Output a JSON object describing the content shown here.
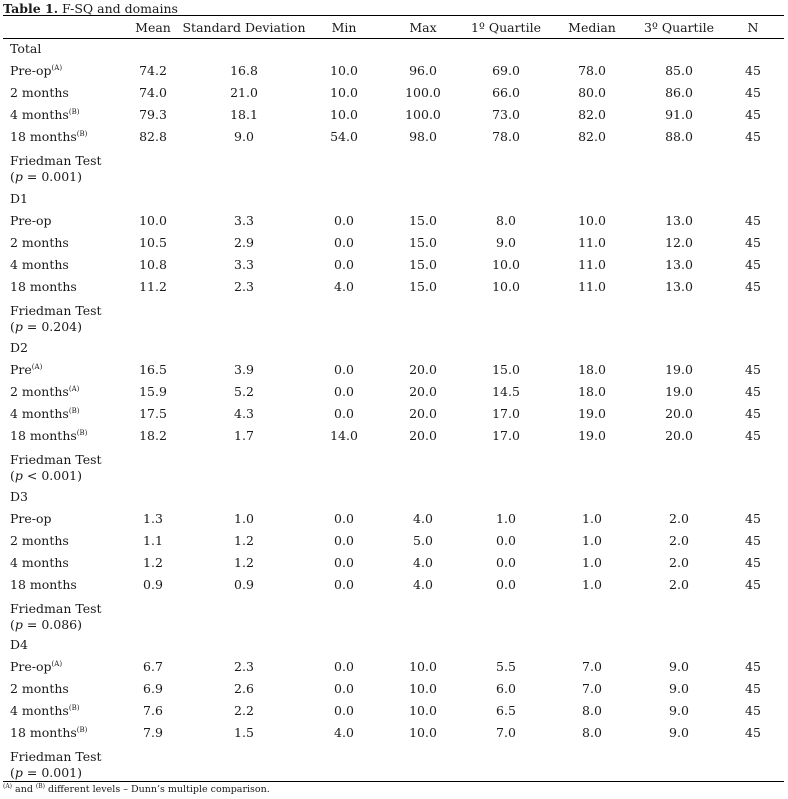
{
  "caption": {
    "label": "Table 1.",
    "text": " F-SQ and domains"
  },
  "headers": [
    "Mean",
    "Standard Deviation",
    "Min",
    "Max",
    "1º Quartile",
    "Median",
    "3º Quartile",
    "N"
  ],
  "groups": [
    {
      "name": "Total",
      "rows": [
        {
          "label": "Pre-op",
          "sup": "(A)",
          "values": [
            "74.2",
            "16.8",
            "10.0",
            "96.0",
            "69.0",
            "78.0",
            "85.0",
            "45"
          ]
        },
        {
          "label": "2 months",
          "sup": "",
          "values": [
            "74.0",
            "21.0",
            "10.0",
            "100.0",
            "66.0",
            "80.0",
            "86.0",
            "45"
          ]
        },
        {
          "label": "4 months",
          "sup": "(B)",
          "values": [
            "79.3",
            "18.1",
            "10.0",
            "100.0",
            "73.0",
            "82.0",
            "91.0",
            "45"
          ]
        },
        {
          "label": "18 months",
          "sup": "(B)",
          "values": [
            "82.8",
            "9.0",
            "54.0",
            "98.0",
            "78.0",
            "82.0",
            "88.0",
            "45"
          ]
        }
      ],
      "test": "Friedman Test",
      "p_prefix": "(",
      "p_italic": "p",
      "p_value": " = 0.001)"
    },
    {
      "name": "D1",
      "rows": [
        {
          "label": "Pre-op",
          "sup": "",
          "values": [
            "10.0",
            "3.3",
            "0.0",
            "15.0",
            "8.0",
            "10.0",
            "13.0",
            "45"
          ]
        },
        {
          "label": "2 months",
          "sup": "",
          "values": [
            "10.5",
            "2.9",
            "0.0",
            "15.0",
            "9.0",
            "11.0",
            "12.0",
            "45"
          ]
        },
        {
          "label": "4 months",
          "sup": "",
          "values": [
            "10.8",
            "3.3",
            "0.0",
            "15.0",
            "10.0",
            "11.0",
            "13.0",
            "45"
          ]
        },
        {
          "label": "18 months",
          "sup": "",
          "values": [
            "11.2",
            "2.3",
            "4.0",
            "15.0",
            "10.0",
            "11.0",
            "13.0",
            "45"
          ]
        }
      ],
      "test": "Friedman Test",
      "p_prefix": "(",
      "p_italic": "p",
      "p_value": " = 0.204)"
    },
    {
      "name": "D2",
      "rows": [
        {
          "label": "Pre",
          "sup": "(A)",
          "values": [
            "16.5",
            "3.9",
            "0.0",
            "20.0",
            "15.0",
            "18.0",
            "19.0",
            "45"
          ]
        },
        {
          "label": "2 months",
          "sup": "(A)",
          "values": [
            "15.9",
            "5.2",
            "0.0",
            "20.0",
            "14.5",
            "18.0",
            "19.0",
            "45"
          ]
        },
        {
          "label": "4 months",
          "sup": "(B)",
          "values": [
            "17.5",
            "4.3",
            "0.0",
            "20.0",
            "17.0",
            "19.0",
            "20.0",
            "45"
          ]
        },
        {
          "label": "18 months",
          "sup": "(B)",
          "values": [
            "18.2",
            "1.7",
            "14.0",
            "20.0",
            "17.0",
            "19.0",
            "20.0",
            "45"
          ]
        }
      ],
      "test": "Friedman Test",
      "p_prefix": "(",
      "p_italic": "p",
      "p_value": " < 0.001)"
    },
    {
      "name": "D3",
      "rows": [
        {
          "label": "Pre-op",
          "sup": "",
          "values": [
            "1.3",
            "1.0",
            "0.0",
            "4.0",
            "1.0",
            "1.0",
            "2.0",
            "45"
          ]
        },
        {
          "label": "2 months",
          "sup": "",
          "values": [
            "1.1",
            "1.2",
            "0.0",
            "5.0",
            "0.0",
            "1.0",
            "2.0",
            "45"
          ]
        },
        {
          "label": "4 months",
          "sup": "",
          "values": [
            "1.2",
            "1.2",
            "0.0",
            "4.0",
            "0.0",
            "1.0",
            "2.0",
            "45"
          ]
        },
        {
          "label": "18 months",
          "sup": "",
          "values": [
            "0.9",
            "0.9",
            "0.0",
            "4.0",
            "0.0",
            "1.0",
            "2.0",
            "45"
          ]
        }
      ],
      "test": "Friedman Test",
      "p_prefix": "(",
      "p_italic": "p",
      "p_value": " = 0.086)"
    },
    {
      "name": "D4",
      "rows": [
        {
          "label": "Pre-op",
          "sup": "(A)",
          "values": [
            "6.7",
            "2.3",
            "0.0",
            "10.0",
            "5.5",
            "7.0",
            "9.0",
            "45"
          ]
        },
        {
          "label": "2 months",
          "sup": "",
          "values": [
            "6.9",
            "2.6",
            "0.0",
            "10.0",
            "6.0",
            "7.0",
            "9.0",
            "45"
          ]
        },
        {
          "label": "4 months",
          "sup": "(B)",
          "values": [
            "7.6",
            "2.2",
            "0.0",
            "10.0",
            "6.5",
            "8.0",
            "9.0",
            "45"
          ]
        },
        {
          "label": "18 months",
          "sup": "(B)",
          "values": [
            "7.9",
            "1.5",
            "4.0",
            "10.0",
            "7.0",
            "8.0",
            "9.0",
            "45"
          ]
        }
      ],
      "test": "Friedman Test",
      "p_prefix": "(",
      "p_italic": "p",
      "p_value": " = 0.001)"
    }
  ],
  "footnote": {
    "sup_a": "(A)",
    "mid": " and ",
    "sup_b": "(B)",
    "text": " different levels – Dunn’s multiple comparison."
  }
}
